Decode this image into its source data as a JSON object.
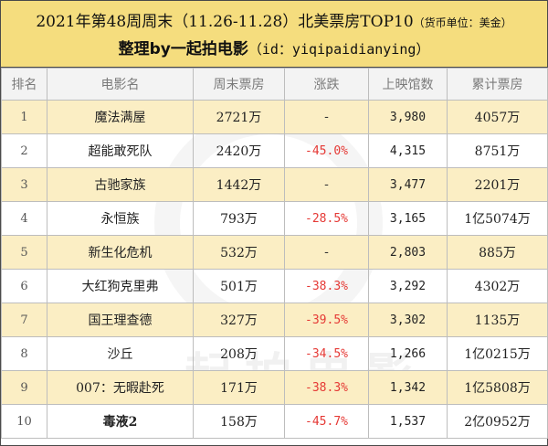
{
  "header": {
    "title_main": "2021年第48周周末（11.26-11.28）北美票房TOP10",
    "title_unit": "（货币单位：美金）",
    "subtitle_main": "整理by一起拍电影",
    "subtitle_id": "（id：yiqipaidianying）"
  },
  "table": {
    "columns": [
      "排名",
      "电影名",
      "周末票房",
      "涨跌",
      "上映馆数",
      "累计票房"
    ],
    "rows": [
      {
        "rank": "1",
        "title": "魔法满屋",
        "weekend": "2721万",
        "change": "-",
        "theaters": "3,980",
        "total": "4057万"
      },
      {
        "rank": "2",
        "title": "超能敢死队",
        "weekend": "2420万",
        "change": "-45.0%",
        "theaters": "4,315",
        "total": "8751万"
      },
      {
        "rank": "3",
        "title": "古驰家族",
        "weekend": "1442万",
        "change": "-",
        "theaters": "3,477",
        "total": "2201万"
      },
      {
        "rank": "4",
        "title": "永恒族",
        "weekend": "793万",
        "change": "-28.5%",
        "theaters": "3,165",
        "total": "1亿5074万"
      },
      {
        "rank": "5",
        "title": "新生化危机",
        "weekend": "532万",
        "change": "-",
        "theaters": "2,803",
        "total": "885万"
      },
      {
        "rank": "6",
        "title": "大红狗克里弗",
        "weekend": "501万",
        "change": "-38.3%",
        "theaters": "3,292",
        "total": "4302万"
      },
      {
        "rank": "7",
        "title": "国王理查德",
        "weekend": "327万",
        "change": "-39.5%",
        "theaters": "3,302",
        "total": "1135万"
      },
      {
        "rank": "8",
        "title": "沙丘",
        "weekend": "208万",
        "change": "-34.5%",
        "theaters": "1,266",
        "total": "1亿0215万"
      },
      {
        "rank": "9",
        "title": "007：无暇赴死",
        "weekend": "171万",
        "change": "-38.3%",
        "theaters": "1,342",
        "total": "1亿5808万"
      },
      {
        "rank": "10",
        "title": "毒液2",
        "weekend": "158万",
        "change": "-45.7%",
        "theaters": "1,537",
        "total": "2亿0952万"
      }
    ]
  },
  "watermark": {
    "text": "一起拍电影"
  },
  "colors": {
    "header_bg": "#f5dd7e",
    "alt_row_bg": "#fbeec4",
    "negative": "#e53935"
  }
}
